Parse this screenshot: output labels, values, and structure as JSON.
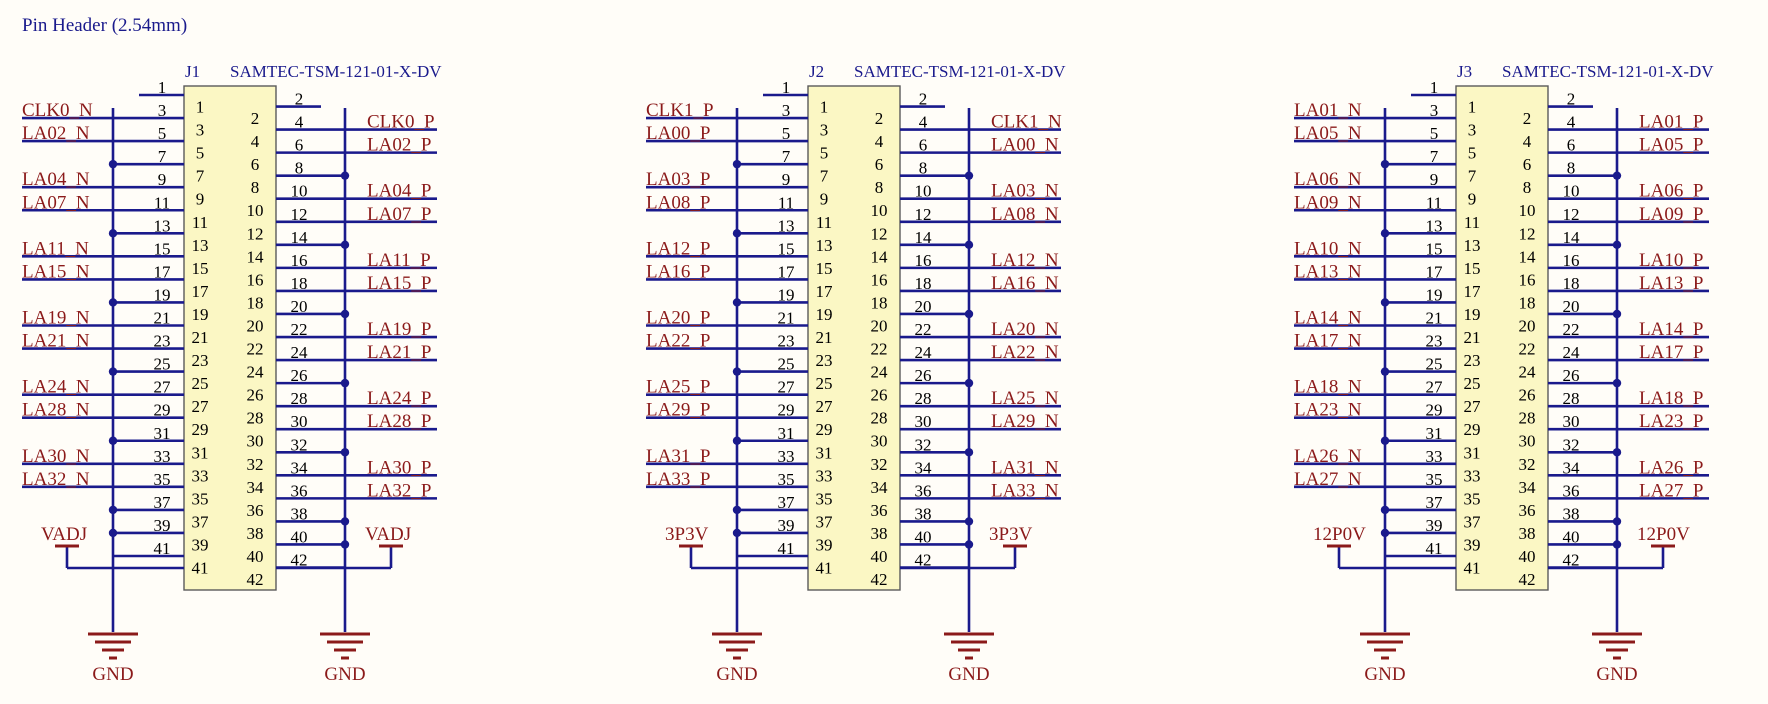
{
  "title": "Pin Header (2.54mm)",
  "colors": {
    "wire": "#1a1a8c",
    "net_label": "#8b1a1a",
    "pin_text": "#000000",
    "body_fill": "#fbf7c4",
    "body_stroke": "#5a5a5a",
    "power": "#8b1a1a",
    "ref_text": "#1a1a8c",
    "background": "#fffdf8"
  },
  "ground_label": "GND",
  "connectors": [
    {
      "ref": "J1",
      "part": "SAMTEC-TSM-121-01-X-DV",
      "power": "VADJ",
      "left_signals": [
        "CLK0_N",
        "LA02_N",
        "LA04_N",
        "LA07_N",
        "LA11_N",
        "LA15_N",
        "LA19_N",
        "LA21_N",
        "LA24_N",
        "LA28_N",
        "LA30_N",
        "LA32_N"
      ],
      "right_signals": [
        "CLK0_P",
        "LA02_P",
        "LA04_P",
        "LA07_P",
        "LA11_P",
        "LA15_P",
        "LA19_P",
        "LA21_P",
        "LA24_P",
        "LA28_P",
        "LA30_P",
        "LA32_P"
      ]
    },
    {
      "ref": "J2",
      "part": "SAMTEC-TSM-121-01-X-DV",
      "power": "3P3V",
      "left_signals": [
        "CLK1_P",
        "LA00_P",
        "LA03_P",
        "LA08_P",
        "LA12_P",
        "LA16_P",
        "LA20_P",
        "LA22_P",
        "LA25_P",
        "LA29_P",
        "LA31_P",
        "LA33_P"
      ],
      "right_signals": [
        "CLK1_N",
        "LA00_N",
        "LA03_N",
        "LA08_N",
        "LA12_N",
        "LA16_N",
        "LA20_N",
        "LA22_N",
        "LA25_N",
        "LA29_N",
        "LA31_N",
        "LA33_N"
      ]
    },
    {
      "ref": "J3",
      "part": "SAMTEC-TSM-121-01-X-DV",
      "power": "12P0V",
      "left_signals": [
        "LA01_N",
        "LA05_N",
        "LA06_N",
        "LA09_N",
        "LA10_N",
        "LA13_N",
        "LA14_N",
        "LA17_N",
        "LA18_N",
        "LA23_N",
        "LA26_N",
        "LA27_N"
      ],
      "right_signals": [
        "LA01_P",
        "LA05_P",
        "LA06_P",
        "LA09_P",
        "LA10_P",
        "LA13_P",
        "LA14_P",
        "LA17_P",
        "LA18_P",
        "LA23_P",
        "LA26_P",
        "LA27_P"
      ]
    }
  ]
}
